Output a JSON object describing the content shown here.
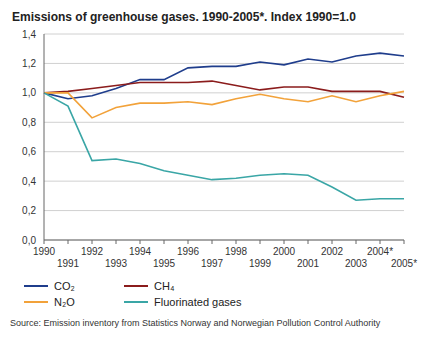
{
  "chart_data": {
    "type": "line",
    "title": "Emissions of greenhouse gases. 1990-2005*. Index 1990=1.0",
    "categories": [
      "1990",
      "1991",
      "1992",
      "1993",
      "1994",
      "1995",
      "1996",
      "1997",
      "1998",
      "1999",
      "2000",
      "2001",
      "2002",
      "2003",
      "2004*",
      "2005*"
    ],
    "series": [
      {
        "name": "CO₂",
        "color": "#1f3d8c",
        "values": [
          1.0,
          0.96,
          0.98,
          1.03,
          1.09,
          1.09,
          1.17,
          1.18,
          1.18,
          1.21,
          1.19,
          1.23,
          1.21,
          1.25,
          1.27,
          1.25
        ]
      },
      {
        "name": "CH₄",
        "color": "#8b1c1c",
        "values": [
          1.0,
          1.01,
          1.03,
          1.05,
          1.07,
          1.07,
          1.07,
          1.08,
          1.05,
          1.02,
          1.04,
          1.04,
          1.01,
          1.01,
          1.01,
          0.97
        ]
      },
      {
        "name": "N₂O",
        "color": "#f2a23a",
        "values": [
          1.0,
          1.0,
          0.83,
          0.9,
          0.93,
          0.93,
          0.94,
          0.92,
          0.96,
          0.99,
          0.96,
          0.94,
          0.98,
          0.94,
          0.98,
          1.01
        ]
      },
      {
        "name": "Fluorinated gases",
        "color": "#3aa6a6",
        "values": [
          1.0,
          0.91,
          0.54,
          0.55,
          0.52,
          0.47,
          0.44,
          0.41,
          0.42,
          0.44,
          0.45,
          0.44,
          0.36,
          0.27,
          0.28,
          0.28
        ]
      }
    ],
    "ylim": [
      0,
      1.4
    ],
    "yticks": [
      {
        "value": 0,
        "label": "0,0"
      },
      {
        "value": 0.2,
        "label": "0,2"
      },
      {
        "value": 0.4,
        "label": "0,4"
      },
      {
        "value": 0.6,
        "label": "0,6"
      },
      {
        "value": 0.8,
        "label": "0,8"
      },
      {
        "value": 1.0,
        "label": "1,0"
      },
      {
        "value": 1.2,
        "label": "1,2"
      },
      {
        "value": 1.4,
        "label": "1,4"
      }
    ],
    "grid": true,
    "legend": "bottom",
    "annotations": [
      "Source: Emission inventory from Statistics Norway and Norwegian Pollution Control Authority"
    ]
  }
}
